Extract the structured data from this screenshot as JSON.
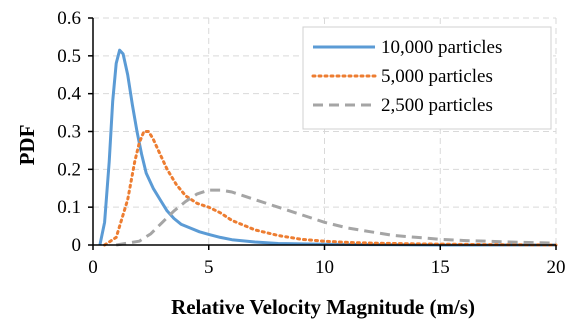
{
  "chart_data": {
    "type": "line",
    "xlabel": "Relative Velocity Magnitude (m/s)",
    "ylabel": "PDF",
    "xlim": [
      0,
      20
    ],
    "ylim": [
      0,
      0.6
    ],
    "x_ticks": [
      "0",
      "5",
      "10",
      "15",
      "20"
    ],
    "y_ticks": [
      "0",
      "0.1",
      "0.2",
      "0.3",
      "0.4",
      "0.5",
      "0.6"
    ],
    "grid": "dashed",
    "legend_position": "top-right",
    "series": [
      {
        "name": "10,000 particles",
        "style": "solid",
        "color": "#5b9bd5",
        "x": [
          0.3,
          0.5,
          0.7,
          0.85,
          1.0,
          1.15,
          1.3,
          1.5,
          1.7,
          1.9,
          2.1,
          2.3,
          2.6,
          2.9,
          3.2,
          3.5,
          3.8,
          4.2,
          4.6,
          5.0,
          5.5,
          6.0,
          7.0,
          8.0,
          9.0,
          10.0,
          12.0,
          15.0,
          20.0
        ],
        "y": [
          0.0,
          0.06,
          0.22,
          0.38,
          0.48,
          0.515,
          0.505,
          0.45,
          0.37,
          0.3,
          0.24,
          0.19,
          0.15,
          0.12,
          0.09,
          0.07,
          0.055,
          0.045,
          0.035,
          0.028,
          0.02,
          0.014,
          0.008,
          0.004,
          0.003,
          0.002,
          0.001,
          0.0,
          0.0
        ]
      },
      {
        "name": "5,000 particles",
        "style": "dotted",
        "color": "#ed7d31",
        "x": [
          0.5,
          1.0,
          1.5,
          1.8,
          2.0,
          2.2,
          2.4,
          2.6,
          2.9,
          3.2,
          3.6,
          4.0,
          4.5,
          5.0,
          5.5,
          6.0,
          7.0,
          8.0,
          9.0,
          10.0,
          11.0,
          12.0,
          14.0,
          17.0,
          20.0
        ],
        "y": [
          0.0,
          0.02,
          0.12,
          0.22,
          0.27,
          0.3,
          0.3,
          0.28,
          0.24,
          0.2,
          0.16,
          0.13,
          0.11,
          0.1,
          0.085,
          0.065,
          0.04,
          0.025,
          0.015,
          0.01,
          0.007,
          0.005,
          0.003,
          0.001,
          0.0
        ]
      },
      {
        "name": "2,500 particles",
        "style": "dashed",
        "color": "#a5a5a5",
        "x": [
          1.0,
          2.0,
          2.5,
          3.0,
          3.5,
          4.0,
          4.5,
          5.0,
          5.5,
          6.0,
          6.5,
          7.0,
          8.0,
          9.0,
          10.0,
          11.0,
          12.0,
          13.0,
          14.0,
          15.0,
          16.0,
          17.0,
          18.0,
          20.0
        ],
        "y": [
          0.0,
          0.01,
          0.03,
          0.06,
          0.09,
          0.115,
          0.135,
          0.145,
          0.145,
          0.14,
          0.13,
          0.12,
          0.1,
          0.08,
          0.06,
          0.045,
          0.035,
          0.025,
          0.02,
          0.015,
          0.012,
          0.01,
          0.008,
          0.005
        ]
      }
    ]
  }
}
